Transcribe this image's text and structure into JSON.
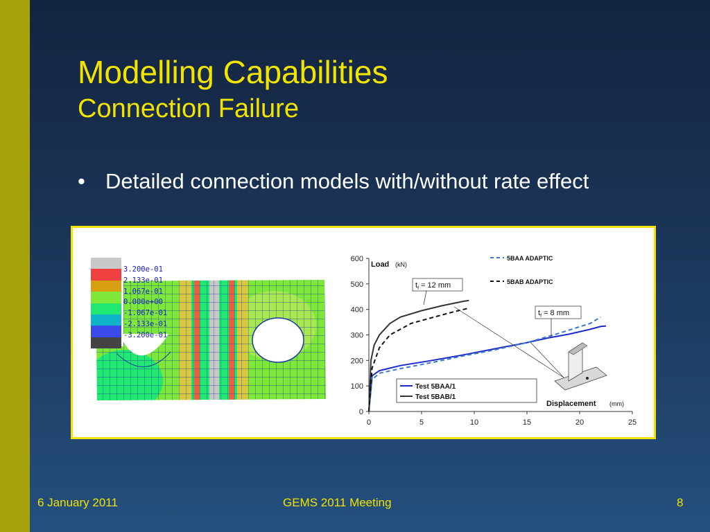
{
  "slide": {
    "title": "Modelling Capabilities",
    "subtitle": "Connection Failure",
    "bullet_char": "•",
    "bullet": "Detailed connection models with/without rate effect"
  },
  "footer": {
    "date": "6 January 2011",
    "event": "GEMS 2011 Meeting",
    "page": "8"
  },
  "colors": {
    "accent": "#f2e400",
    "band": "#a8a20c",
    "background_top": "#13243f",
    "background_bottom": "#244f7d"
  },
  "contour": {
    "colors": [
      "#c8c8c8",
      "#f04040",
      "#d8a010",
      "#7ee83a",
      "#20e870",
      "#10b4c8",
      "#3a4ae8",
      "#444444"
    ],
    "labels": [
      "3.200e-01",
      "2.133e-01",
      "1.067e-01",
      "0.000e+00",
      "-1.067e-01",
      "-2.133e-01",
      "-3.200e-01"
    ]
  },
  "chart_data": {
    "type": "line",
    "ylabel": "Load",
    "ylabel_unit": "(kN)",
    "xlabel": "Displacement",
    "xlabel_unit": "(mm)",
    "xlim": [
      0,
      25
    ],
    "ylim": [
      0,
      600
    ],
    "x_ticks": [
      "0",
      "5",
      "10",
      "15",
      "20",
      "25"
    ],
    "y_ticks": [
      "0",
      "100",
      "200",
      "300",
      "400",
      "500",
      "600"
    ],
    "series": [
      {
        "name": "Test 5BAA/1",
        "color": "#1a2ad0",
        "style": "solid",
        "x": [
          0,
          0.3,
          1,
          3,
          6,
          9,
          12,
          15,
          17,
          19,
          21,
          22,
          22.5
        ],
        "y": [
          0,
          140,
          160,
          180,
          200,
          222,
          246,
          270,
          288,
          303,
          322,
          333,
          335
        ]
      },
      {
        "name": "Test 5BAB/1",
        "color": "#333333",
        "style": "solid",
        "x": [
          0,
          0.2,
          0.5,
          1,
          2,
          3,
          5,
          7,
          9,
          9.5
        ],
        "y": [
          0,
          200,
          260,
          300,
          345,
          370,
          395,
          415,
          432,
          435
        ]
      },
      {
        "name": "5BAA ADAPTIC",
        "color": "#3a7ac8",
        "style": "dashed",
        "x": [
          0,
          0.3,
          1,
          3,
          6,
          9,
          12,
          15,
          18,
          21,
          22
        ],
        "y": [
          0,
          125,
          150,
          168,
          192,
          218,
          242,
          270,
          306,
          345,
          370
        ]
      },
      {
        "name": "5BAB ADAPTIC",
        "color": "#111111",
        "style": "dashed",
        "x": [
          0,
          0.3,
          1,
          2,
          4,
          6,
          8,
          9.5
        ],
        "y": [
          0,
          170,
          250,
          300,
          345,
          368,
          390,
          405
        ]
      }
    ],
    "annotations": [
      {
        "text": "t",
        "sub": "f",
        "rest": " = 12 mm"
      },
      {
        "text": "t",
        "sub": "f",
        "rest": " = 8 mm"
      }
    ],
    "legend_right": [
      "5BAA ADAPTIC",
      "5BAB ADAPTIC"
    ],
    "legend_box": [
      "Test 5BAA/1",
      "Test 5BAB/1"
    ]
  }
}
